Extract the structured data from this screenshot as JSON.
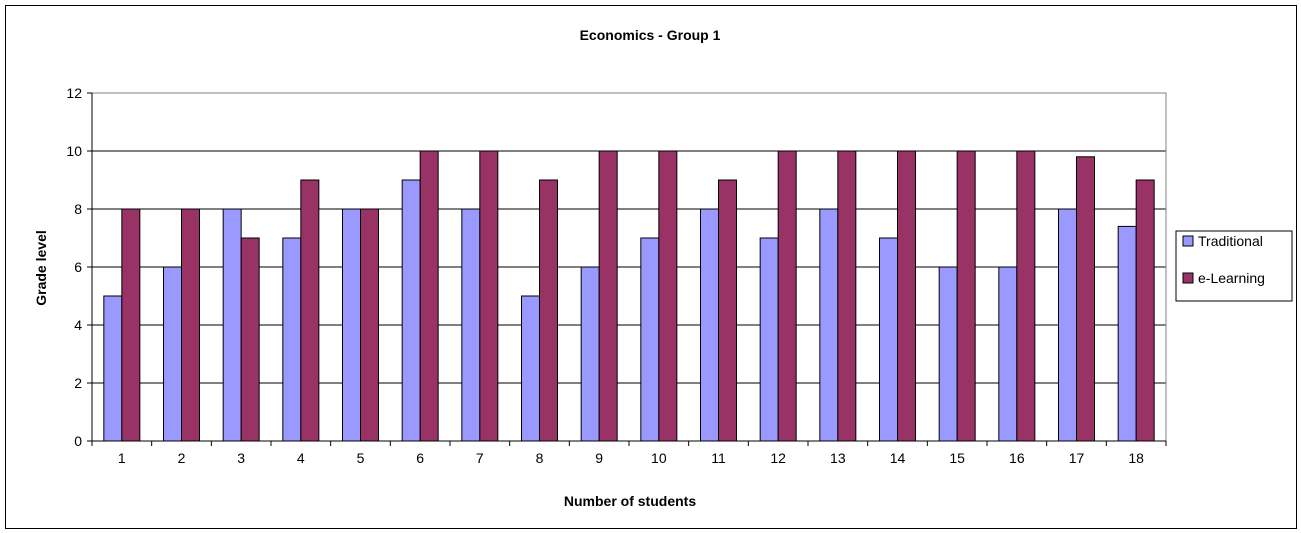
{
  "chart_data": {
    "type": "bar",
    "title": "Economics - Group 1",
    "xlabel": "Number of students",
    "ylabel": "Grade level",
    "ylim": [
      0,
      12
    ],
    "yticks": [
      "0",
      "2",
      "4",
      "6",
      "8",
      "10",
      "12"
    ],
    "categories": [
      "1",
      "2",
      "3",
      "4",
      "5",
      "6",
      "7",
      "8",
      "9",
      "10",
      "11",
      "12",
      "13",
      "14",
      "15",
      "16",
      "17",
      "18"
    ],
    "grid": true,
    "legend_position": "right",
    "series": [
      {
        "name": "Traditional",
        "color": "#9999ff",
        "values": [
          5,
          6,
          8,
          7,
          8,
          9,
          8,
          5,
          6,
          7,
          8,
          7,
          8,
          7,
          6,
          6,
          8,
          7.4
        ]
      },
      {
        "name": "e-Learning",
        "color": "#993366",
        "values": [
          8,
          8,
          7,
          9,
          8,
          10,
          10,
          9,
          10,
          10,
          9,
          10,
          10,
          10,
          10,
          10,
          9.8,
          9
        ]
      }
    ]
  }
}
